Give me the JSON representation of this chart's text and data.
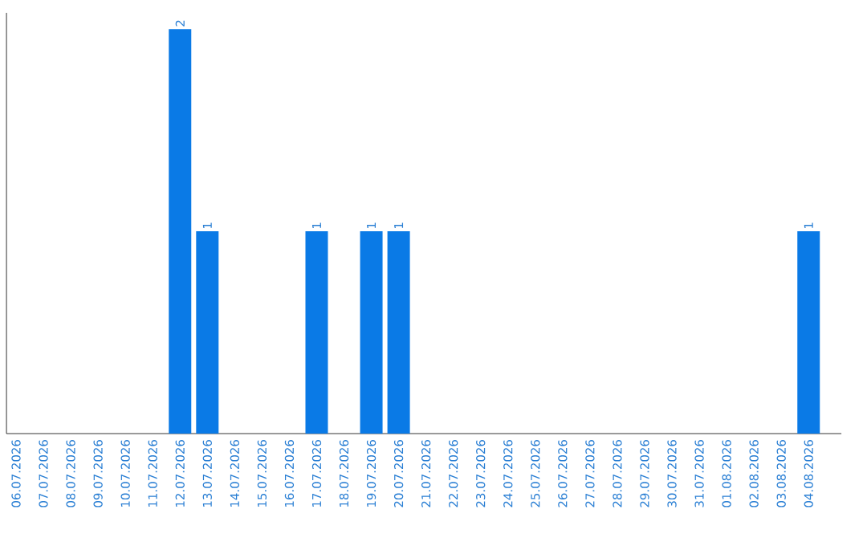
{
  "chart_data": {
    "type": "bar",
    "categories": [
      "06.07.2026",
      "07.07.2026",
      "08.07.2026",
      "09.07.2026",
      "10.07.2026",
      "11.07.2026",
      "12.07.2026",
      "13.07.2026",
      "14.07.2026",
      "15.07.2026",
      "16.07.2026",
      "17.07.2026",
      "18.07.2026",
      "19.07.2026",
      "20.07.2026",
      "21.07.2026",
      "22.07.2026",
      "23.07.2026",
      "24.07.2026",
      "25.07.2026",
      "26.07.2026",
      "27.07.2026",
      "28.07.2026",
      "29.07.2026",
      "30.07.2026",
      "31.07.2026",
      "01.08.2026",
      "02.08.2026",
      "03.08.2026",
      "04.08.2026"
    ],
    "values": [
      0,
      0,
      0,
      0,
      0,
      0,
      2,
      1,
      0,
      0,
      0,
      1,
      0,
      1,
      1,
      0,
      0,
      0,
      0,
      0,
      0,
      0,
      0,
      0,
      0,
      0,
      0,
      0,
      0,
      1
    ],
    "value_labels": [
      null,
      null,
      null,
      null,
      null,
      null,
      "2",
      "1",
      null,
      null,
      null,
      "1",
      null,
      "1",
      "1",
      null,
      null,
      null,
      null,
      null,
      null,
      null,
      null,
      null,
      null,
      null,
      null,
      null,
      null,
      "1"
    ],
    "color": "#0a7ae6"
  }
}
